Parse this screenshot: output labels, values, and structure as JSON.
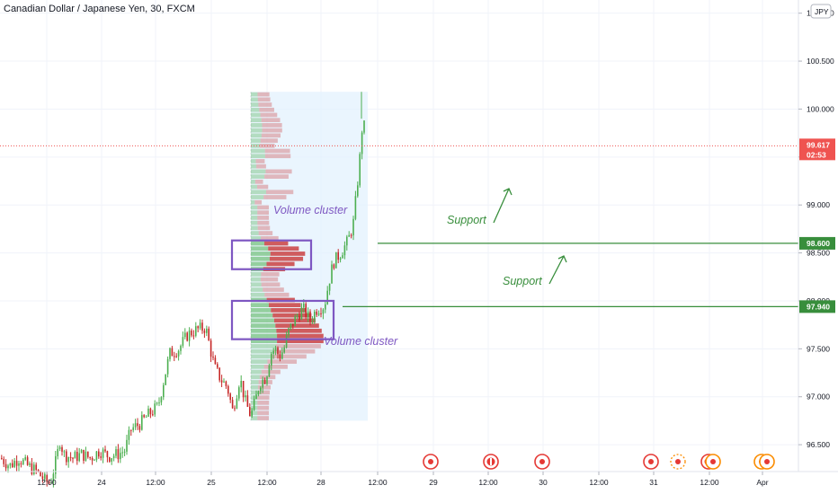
{
  "header": {
    "title": "Canadian Dollar / Japanese Yen, 30, FXCM"
  },
  "currency_badge": "JPY",
  "colors": {
    "up": "#4caf50",
    "down": "#c62828",
    "last_price": "#ef5350",
    "support": "#388e3c",
    "cluster_box": "#7e57c2",
    "profile_bg": "#e3f2fd",
    "event_icon": "#e53935"
  },
  "chart_data": {
    "type": "candlestick",
    "symbol": "CADJPY",
    "interval": "30",
    "ylim": [
      96.22,
      101.1
    ],
    "y_ticks": [
      {
        "value": 101.0,
        "label": "101.000"
      },
      {
        "value": 100.5,
        "label": "100.500"
      },
      {
        "value": 100.0,
        "label": "100.000"
      },
      {
        "value": 99.5,
        "label": "99.500"
      },
      {
        "value": 99.0,
        "label": "99.000"
      },
      {
        "value": 98.5,
        "label": "98.500"
      },
      {
        "value": 98.0,
        "label": "98.000"
      },
      {
        "value": 97.5,
        "label": "97.500"
      },
      {
        "value": 97.0,
        "label": "97.000"
      },
      {
        "value": 96.5,
        "label": "96.500"
      }
    ],
    "x_ticks": [
      "12:00",
      "24",
      "12:00",
      "25",
      "12:00",
      "28",
      "12:00",
      "29",
      "12:00",
      "30",
      "12:00",
      "31",
      "12:00",
      "Apr"
    ],
    "candle_path": [
      [
        0,
        96.36
      ],
      [
        10,
        96.28
      ],
      [
        20,
        96.36
      ],
      [
        30,
        96.28
      ],
      [
        40,
        96.22
      ],
      [
        50,
        96.12
      ],
      [
        55,
        96.1
      ],
      [
        62,
        96.35
      ],
      [
        66,
        96.55
      ],
      [
        70,
        96.4
      ],
      [
        80,
        96.36
      ],
      [
        90,
        96.4
      ],
      [
        100,
        96.36
      ],
      [
        110,
        96.44
      ],
      [
        120,
        96.38
      ],
      [
        130,
        96.4
      ],
      [
        138,
        96.44
      ],
      [
        145,
        96.66
      ],
      [
        155,
        96.72
      ],
      [
        165,
        96.82
      ],
      [
        175,
        96.9
      ],
      [
        182,
        97.2
      ],
      [
        188,
        97.45
      ],
      [
        198,
        97.5
      ],
      [
        208,
        97.65
      ],
      [
        218,
        97.7
      ],
      [
        228,
        97.72
      ],
      [
        233,
        97.5
      ],
      [
        238,
        97.3
      ],
      [
        245,
        97.18
      ],
      [
        252,
        97.1
      ],
      [
        258,
        96.85
      ],
      [
        266,
        97.2
      ],
      [
        272,
        96.95
      ],
      [
        278,
        96.8
      ],
      [
        283,
        96.95
      ],
      [
        288,
        97.15
      ],
      [
        295,
        97.2
      ],
      [
        300,
        97.45
      ],
      [
        305,
        97.5
      ],
      [
        310,
        97.42
      ],
      [
        315,
        97.5
      ],
      [
        320,
        97.68
      ],
      [
        328,
        97.82
      ],
      [
        336,
        97.92
      ],
      [
        344,
        97.8
      ],
      [
        352,
        97.92
      ],
      [
        360,
        97.95
      ],
      [
        365,
        98.2
      ],
      [
        370,
        98.4
      ],
      [
        378,
        98.5
      ],
      [
        386,
        98.62
      ],
      [
        392,
        98.8
      ],
      [
        396,
        99.15
      ],
      [
        400,
        99.55
      ],
      [
        403,
        99.95
      ],
      [
        406,
        99.62
      ]
    ],
    "high": 100.18,
    "last_price": {
      "value": 99.617,
      "label": "99.617",
      "countdown": "02:53"
    },
    "volume_profile": {
      "from_x_label": "25 ~05:00",
      "to_x_label": "28 ~09:00",
      "price_top": 100.18,
      "price_bottom": 96.75
    },
    "levels": [
      {
        "name": "Support",
        "value": 98.6,
        "label": "98.600"
      },
      {
        "name": "Support",
        "value": 97.94,
        "label": "97.940"
      }
    ],
    "annotations": [
      {
        "text": "Volume cluster",
        "price_top": 98.63,
        "price_bottom": 98.33
      },
      {
        "text": "Volume cluster",
        "price_top": 98.0,
        "price_bottom": 97.6
      }
    ]
  }
}
